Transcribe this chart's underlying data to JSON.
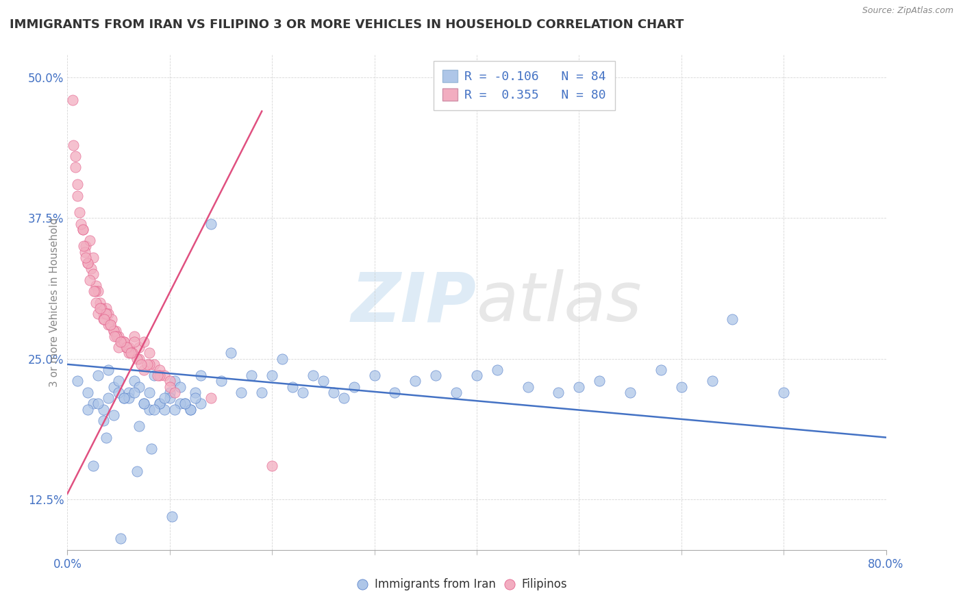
{
  "title": "IMMIGRANTS FROM IRAN VS FILIPINO 3 OR MORE VEHICLES IN HOUSEHOLD CORRELATION CHART",
  "source": "Source: ZipAtlas.com",
  "ylabel_label": "3 or more Vehicles in Household",
  "legend_label1": "Immigrants from Iran",
  "legend_label2": "Filipinos",
  "r1": "-0.106",
  "n1": "84",
  "r2": "0.355",
  "n2": "80",
  "color_blue": "#aec6e8",
  "color_pink": "#f2adc0",
  "color_blue_line": "#4472c4",
  "color_pink_line": "#e05080",
  "color_blue_text": "#4472c4",
  "watermark_zip": "ZIP",
  "watermark_atlas": "atlas",
  "background": "#ffffff",
  "xlim": [
    0,
    80
  ],
  "ylim": [
    8,
    52
  ],
  "yticks": [
    12.5,
    25.0,
    37.5,
    50.0
  ],
  "blue_trend_x0": 0,
  "blue_trend_y0": 24.5,
  "blue_trend_x1": 80,
  "blue_trend_y1": 18.0,
  "pink_trend_x0": 0,
  "pink_trend_y0": 13.0,
  "pink_trend_x1": 19,
  "pink_trend_y1": 47.0,
  "blue_dots_x": [
    1.0,
    2.0,
    2.5,
    3.0,
    3.5,
    4.0,
    4.5,
    5.0,
    5.5,
    6.0,
    6.5,
    7.0,
    7.5,
    8.0,
    8.5,
    9.0,
    9.5,
    10.0,
    10.5,
    11.0,
    11.5,
    12.0,
    12.5,
    13.0,
    14.0,
    15.0,
    16.0,
    17.0,
    18.0,
    19.0,
    20.0,
    21.0,
    22.0,
    23.0,
    24.0,
    25.0,
    26.0,
    27.0,
    28.0,
    30.0,
    32.0,
    34.0,
    36.0,
    38.0,
    40.0,
    42.0,
    45.0,
    48.0,
    50.0,
    52.0,
    55.0,
    58.0,
    60.0,
    63.0,
    65.0,
    70.0,
    2.0,
    3.0,
    4.0,
    5.0,
    6.0,
    7.0,
    8.0,
    9.0,
    10.0,
    11.0,
    12.0,
    13.0,
    3.5,
    4.5,
    5.5,
    6.5,
    7.5,
    8.5,
    9.5,
    10.5,
    11.5,
    12.5,
    2.5,
    3.8,
    5.2,
    6.8,
    8.2,
    10.2
  ],
  "blue_dots_y": [
    23.0,
    22.0,
    21.0,
    23.5,
    20.5,
    24.0,
    22.5,
    23.0,
    21.5,
    22.0,
    23.0,
    22.5,
    21.0,
    22.0,
    23.5,
    21.0,
    20.5,
    22.0,
    23.0,
    22.5,
    21.0,
    20.5,
    22.0,
    23.5,
    37.0,
    23.0,
    25.5,
    22.0,
    23.5,
    22.0,
    23.5,
    25.0,
    22.5,
    22.0,
    23.5,
    23.0,
    22.0,
    21.5,
    22.5,
    23.5,
    22.0,
    23.0,
    23.5,
    22.0,
    23.5,
    24.0,
    22.5,
    22.0,
    22.5,
    23.0,
    22.0,
    24.0,
    22.5,
    23.0,
    28.5,
    22.0,
    20.5,
    21.0,
    21.5,
    22.0,
    21.5,
    19.0,
    20.5,
    21.0,
    21.5,
    21.0,
    20.5,
    21.0,
    19.5,
    20.0,
    21.5,
    22.0,
    21.0,
    20.5,
    21.5,
    20.5,
    21.0,
    21.5,
    15.5,
    18.0,
    9.0,
    15.0,
    17.0,
    11.0
  ],
  "pink_dots_x": [
    0.5,
    0.8,
    1.0,
    1.2,
    1.5,
    1.8,
    2.0,
    2.2,
    2.5,
    2.8,
    3.0,
    3.2,
    3.5,
    3.8,
    4.0,
    4.2,
    4.5,
    4.8,
    5.0,
    5.5,
    6.0,
    6.5,
    7.0,
    7.5,
    8.0,
    8.5,
    9.0,
    9.5,
    10.0,
    1.3,
    1.7,
    2.3,
    2.7,
    3.3,
    3.7,
    4.3,
    4.7,
    5.3,
    5.7,
    6.3,
    1.0,
    2.0,
    3.0,
    4.0,
    5.0,
    6.0,
    7.0,
    8.0,
    9.0,
    10.0,
    1.5,
    2.5,
    3.5,
    4.5,
    5.5,
    6.5,
    7.5,
    0.8,
    1.8,
    2.8,
    3.8,
    4.8,
    5.8,
    6.8,
    7.8,
    8.8,
    0.6,
    1.6,
    2.6,
    3.6,
    4.6,
    10.5,
    14.0,
    20.0,
    2.2,
    3.2,
    4.2,
    5.2,
    6.2,
    7.2
  ],
  "pink_dots_y": [
    48.0,
    43.0,
    40.5,
    38.0,
    36.5,
    35.0,
    33.5,
    35.5,
    34.0,
    31.5,
    31.0,
    30.0,
    29.0,
    29.5,
    29.0,
    28.0,
    27.5,
    27.0,
    27.0,
    26.5,
    26.0,
    27.0,
    26.0,
    26.5,
    25.5,
    24.5,
    24.0,
    23.5,
    23.0,
    37.0,
    34.5,
    33.0,
    31.0,
    29.5,
    29.0,
    28.5,
    27.5,
    26.5,
    26.0,
    25.5,
    39.5,
    33.5,
    29.0,
    28.0,
    26.0,
    25.5,
    25.0,
    24.5,
    23.5,
    22.5,
    36.5,
    32.5,
    28.5,
    27.5,
    26.5,
    26.5,
    24.0,
    42.0,
    34.0,
    30.0,
    29.0,
    27.0,
    26.0,
    25.0,
    24.5,
    23.5,
    44.0,
    35.0,
    31.0,
    28.5,
    27.0,
    22.0,
    21.5,
    15.5,
    32.0,
    29.5,
    28.0,
    26.5,
    25.5,
    24.5
  ]
}
